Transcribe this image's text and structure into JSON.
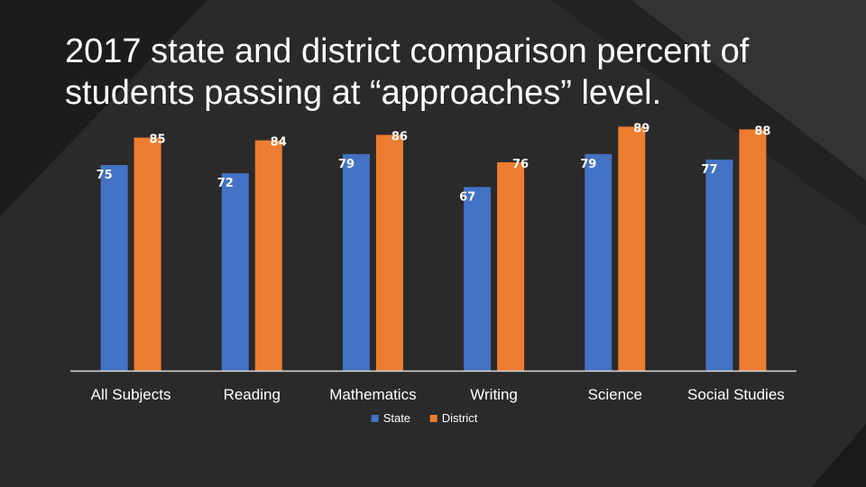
{
  "slide": {
    "title": "2017 state and district comparison percent of students passing at “approaches” level."
  },
  "colors": {
    "background": "#222222",
    "title_text": "#ffffff",
    "label_text": "#ffffff",
    "axis_line": "#d9d9d9"
  },
  "chart_data": {
    "type": "bar",
    "categories": [
      "All Subjects",
      "Reading",
      "Mathematics",
      "Writing",
      "Science",
      "Social Studies"
    ],
    "series": [
      {
        "name": "State",
        "color": "#4472c4",
        "values": [
          75,
          72,
          79,
          67,
          79,
          77
        ]
      },
      {
        "name": "District",
        "color": "#ed7d31",
        "values": [
          85,
          84,
          86,
          76,
          89,
          88
        ]
      }
    ],
    "ylim": [
      0,
      100
    ],
    "data_labels": true,
    "grid": false,
    "legend_position": "bottom"
  }
}
